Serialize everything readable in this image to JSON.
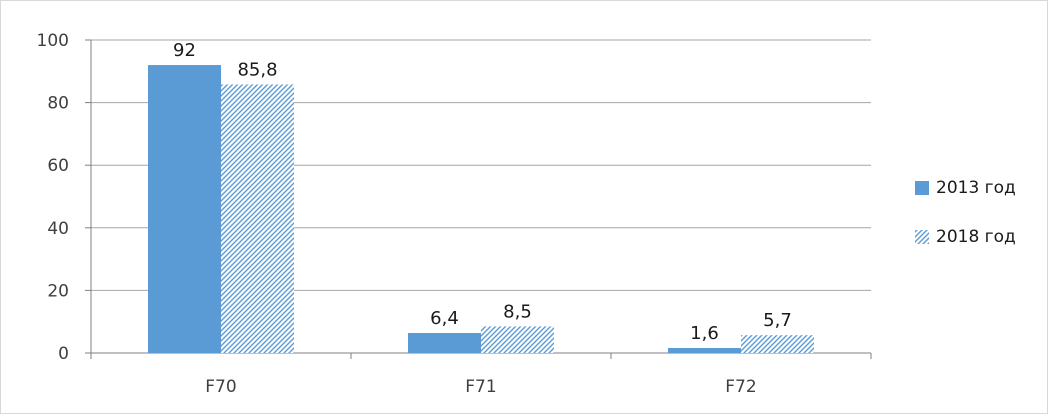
{
  "chart_data": {
    "type": "bar",
    "categories": [
      "F70",
      "F71",
      "F72"
    ],
    "series": [
      {
        "name": "2013 год",
        "values": [
          92,
          6.4,
          1.6
        ],
        "value_labels": [
          "92",
          "6,4",
          "1,6"
        ],
        "color": "#5b9bd5",
        "fill": "solid"
      },
      {
        "name": "2018 год",
        "values": [
          85.8,
          8.5,
          5.7
        ],
        "value_labels": [
          "85,8",
          "8,5",
          "5,7"
        ],
        "color": "#5b9bd5",
        "fill": "diagonal-hatch"
      }
    ],
    "ylim": [
      0,
      100
    ],
    "yticks": [
      0,
      20,
      40,
      60,
      80,
      100
    ],
    "grid": true,
    "legend_position": "right"
  }
}
